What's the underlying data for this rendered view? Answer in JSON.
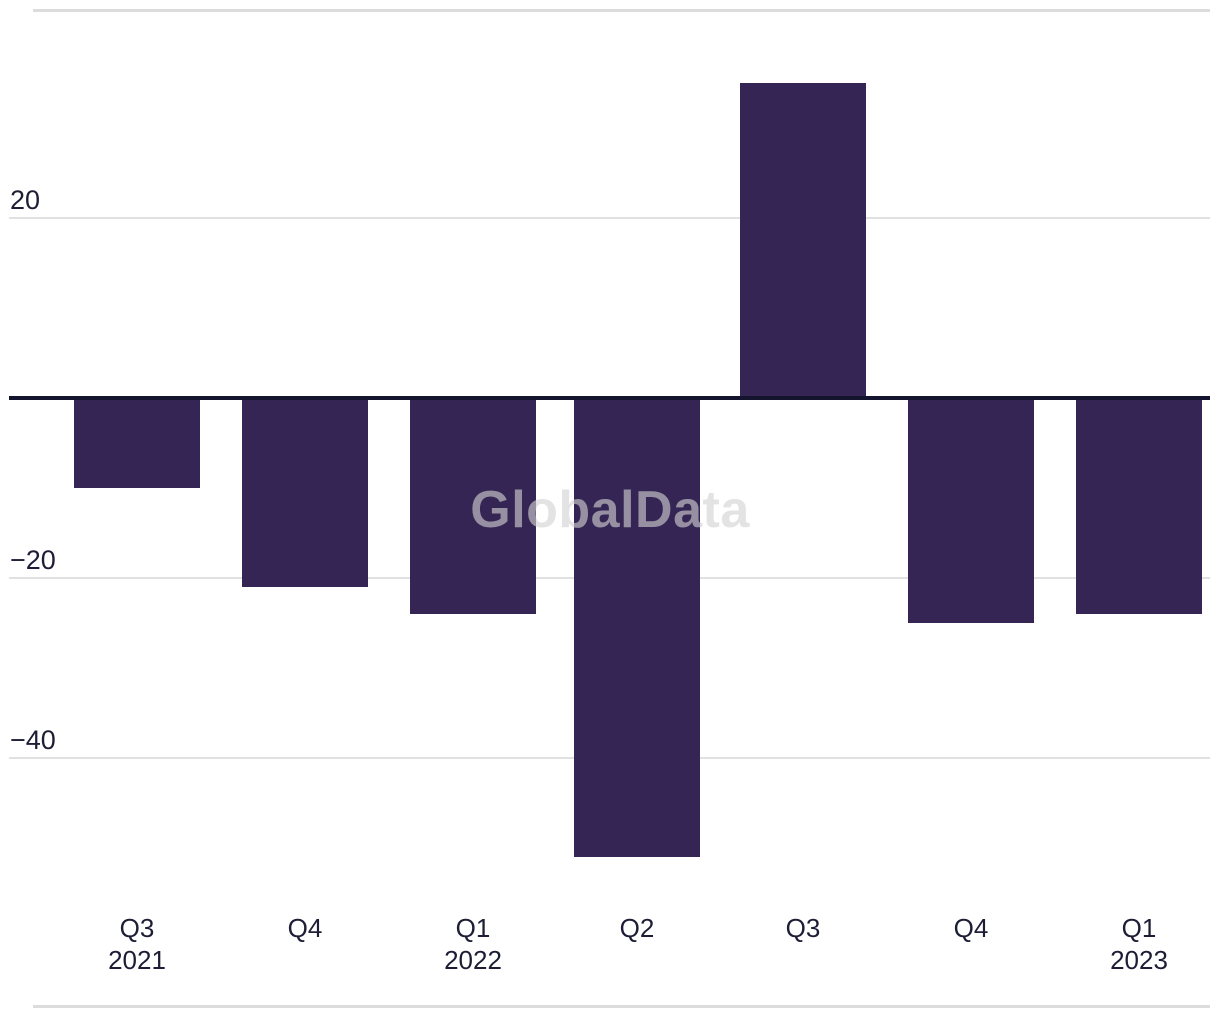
{
  "watermark": "GlobalData",
  "colors": {
    "bar": "#352554",
    "zero_line": "#14142e",
    "gridline": "#e1e1e1",
    "frame_rule": "#dcdcdc",
    "label_text": "#1d1d35",
    "watermark_text": "#d2d2d2"
  },
  "chart_data": {
    "type": "bar",
    "title": "",
    "xlabel": "",
    "ylabel": "",
    "categories": [
      {
        "quarter": "Q3",
        "year": "2021"
      },
      {
        "quarter": "Q4",
        "year": ""
      },
      {
        "quarter": "Q1",
        "year": "2022"
      },
      {
        "quarter": "Q2",
        "year": ""
      },
      {
        "quarter": "Q3",
        "year": ""
      },
      {
        "quarter": "Q4",
        "year": ""
      },
      {
        "quarter": "Q1",
        "year": "2023"
      }
    ],
    "values": [
      -10,
      -21,
      -24,
      -51,
      35,
      -25,
      -24
    ],
    "y_gridlines": [
      {
        "value": 20,
        "label": "20"
      },
      {
        "value": -20,
        "label": "−20"
      },
      {
        "value": -40,
        "label": "−40"
      }
    ],
    "ylim": [
      -53,
      43
    ],
    "grid": true,
    "legend": false,
    "bar_color": "#352554",
    "watermark": "GlobalData"
  }
}
